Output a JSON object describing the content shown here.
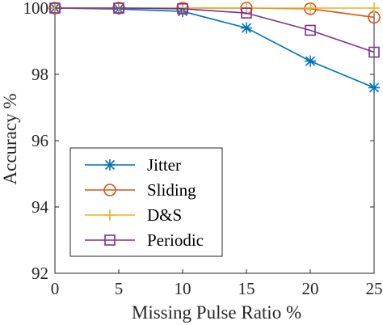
{
  "chart_data": {
    "type": "line",
    "xlabel": "Missing Pulse Ratio  %",
    "ylabel": "Accuracy %",
    "xlim": [
      0,
      25
    ],
    "ylim": [
      92,
      100
    ],
    "xticks": [
      "0",
      "5",
      "10",
      "15",
      "20",
      "25"
    ],
    "yticks": [
      "92",
      "94",
      "96",
      "98",
      "100"
    ],
    "grid": false,
    "legend_position": "lower-left",
    "x": [
      0,
      5,
      10,
      15,
      20,
      25
    ],
    "series": [
      {
        "name": "Jitter",
        "color": "#0072BD",
        "marker": "asterisk",
        "values": [
          100,
          99.97,
          99.9,
          99.4,
          98.4,
          97.6
        ]
      },
      {
        "name": "Sliding",
        "color": "#D95319",
        "marker": "circle",
        "values": [
          100,
          100,
          100,
          100,
          99.98,
          99.72
        ]
      },
      {
        "name": "D&S",
        "color": "#EDB120",
        "marker": "plus",
        "values": [
          100,
          100,
          100,
          100,
          100,
          100
        ]
      },
      {
        "name": "Periodic",
        "color": "#7E2F8E",
        "marker": "square",
        "values": [
          100,
          100,
          99.98,
          99.85,
          99.33,
          98.67
        ]
      }
    ]
  }
}
